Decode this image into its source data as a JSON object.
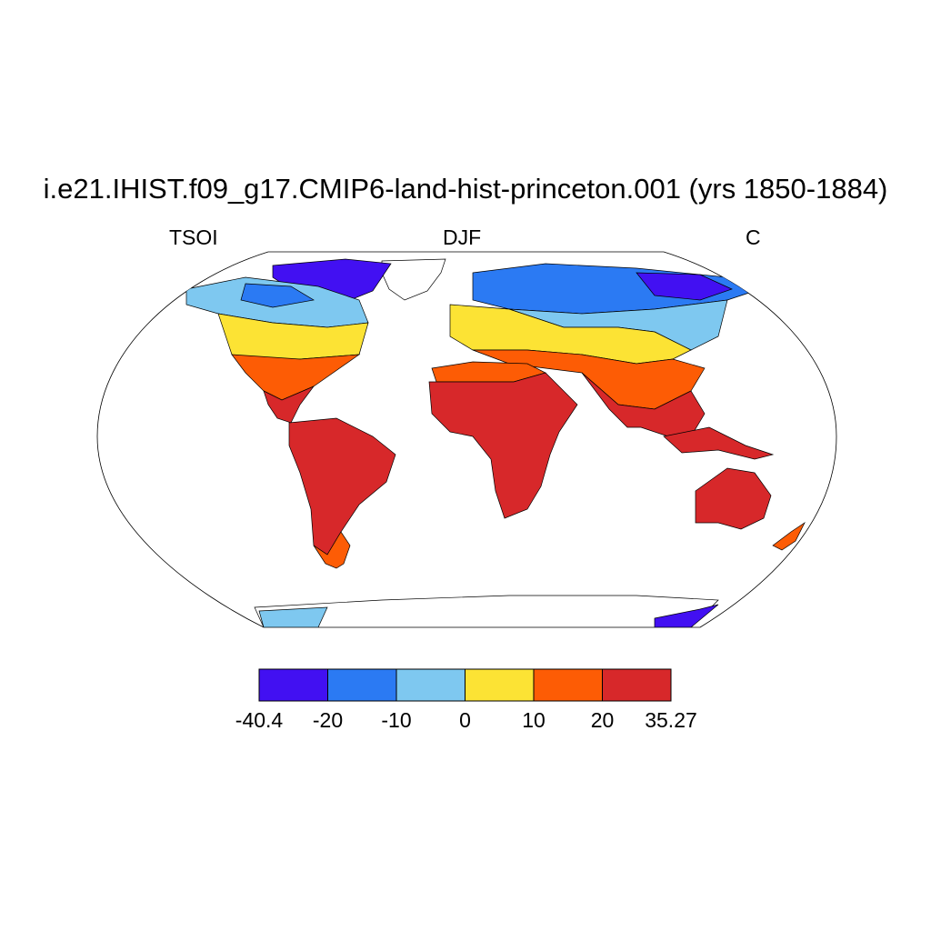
{
  "title": "i.e21.IHIST.f09_g17.CMIP6-land-hist-princeton.001 (yrs 1850-1884)",
  "subtitle_left": "TSOI",
  "subtitle_center": "DJF",
  "subtitle_right": "C",
  "colorbar": {
    "levels": [
      "-40.4",
      "-20",
      "-10",
      "0",
      "10",
      "20",
      "35.27"
    ],
    "colors": [
      "#4210f2",
      "#2b7af3",
      "#7ec8f0",
      "#fce334",
      "#fd5c05",
      "#d7282a"
    ]
  },
  "chart_data": {
    "type": "map",
    "variable": "TSOI",
    "season": "DJF",
    "units": "C",
    "projection": "robinson",
    "contour_levels": [
      -40.4,
      -20,
      -10,
      0,
      10,
      20,
      35.27
    ]
  }
}
